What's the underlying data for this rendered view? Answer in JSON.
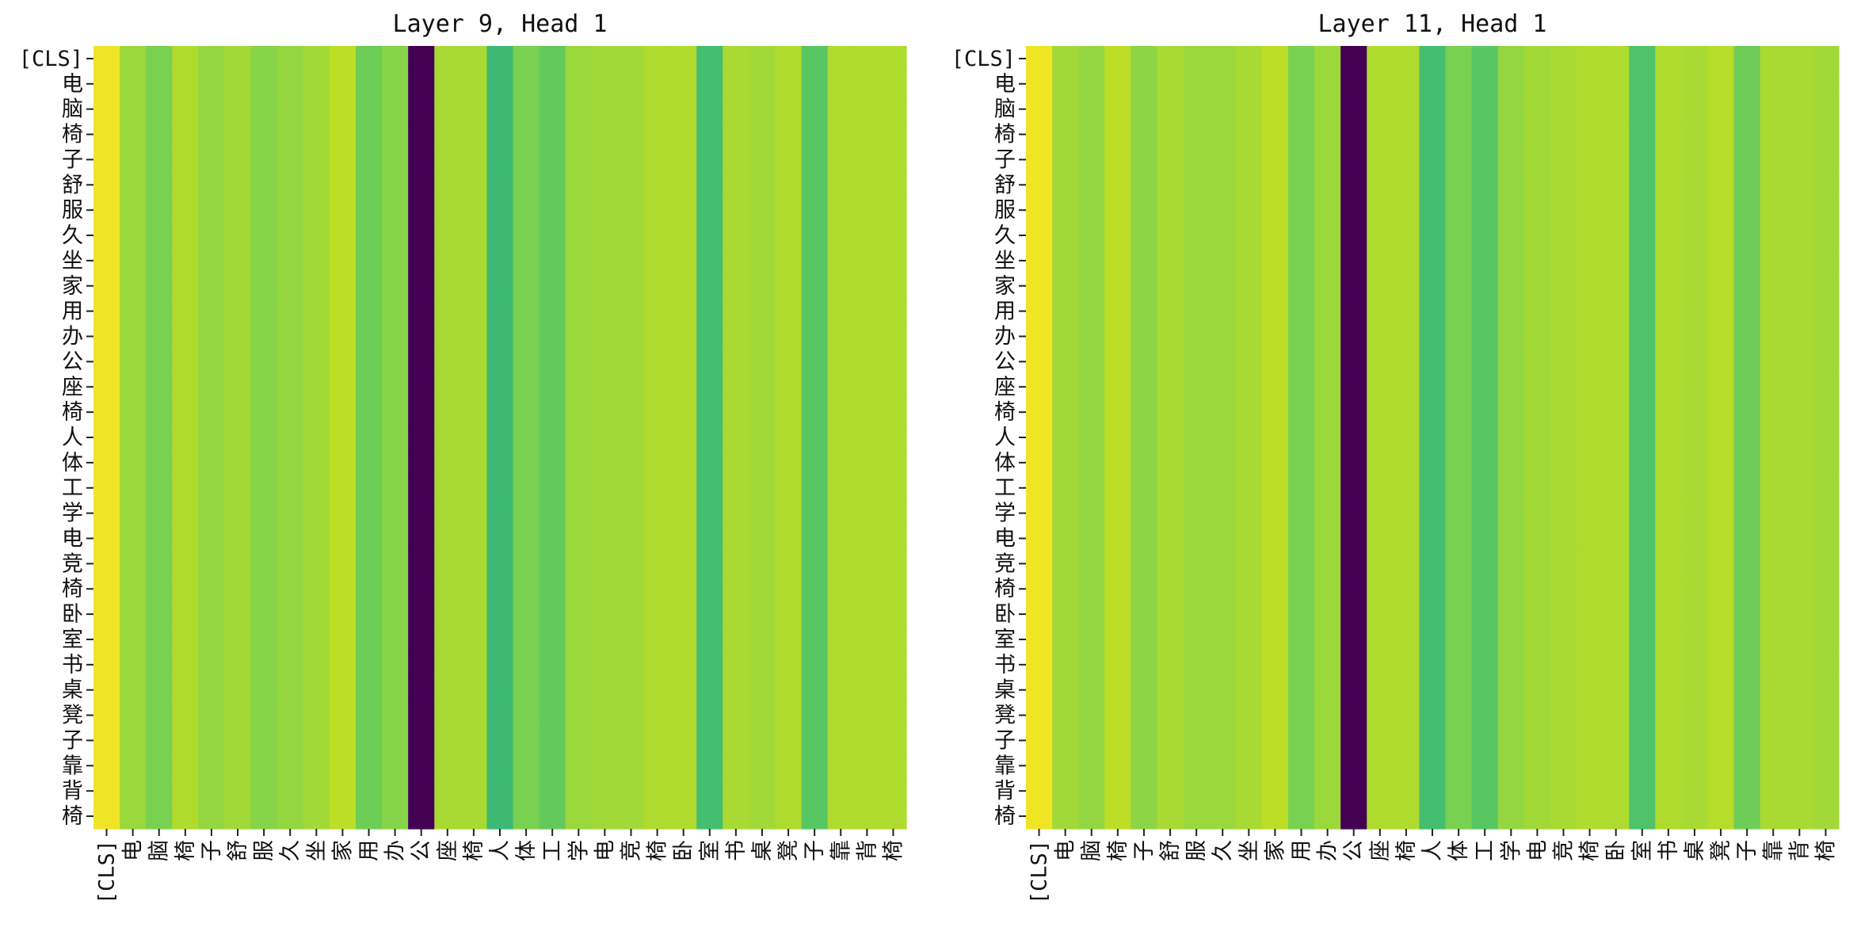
{
  "chart_data": [
    {
      "type": "heatmap",
      "title": "Layer 9, Head 1",
      "xlabel": "",
      "ylabel": "",
      "x_tick_labels": [
        "[CLS]",
        "电",
        "脑",
        "椅",
        "子",
        "舒",
        "服",
        "久",
        "坐",
        "家",
        "用",
        "办",
        "公",
        "座",
        "椅",
        "人",
        "体",
        "工",
        "学",
        "电",
        "竞",
        "椅",
        "卧",
        "室",
        "书",
        "桌",
        "凳",
        "子",
        "靠",
        "背",
        "椅"
      ],
      "y_tick_labels": [
        "[CLS]",
        "电",
        "脑",
        "椅",
        "子",
        "舒",
        "服",
        "久",
        "坐",
        "家",
        "用",
        "办",
        "公",
        "座",
        "椅",
        "人",
        "体",
        "工",
        "学",
        "电",
        "竞",
        "椅",
        "卧",
        "室",
        "书",
        "桌",
        "凳",
        "子",
        "靠",
        "背",
        "椅"
      ],
      "colormap": "viridis",
      "colorbar": false,
      "grid": false,
      "value_range": [
        0,
        1
      ],
      "column_values": [
        0.98,
        0.85,
        0.8,
        0.88,
        0.84,
        0.86,
        0.82,
        0.84,
        0.86,
        0.9,
        0.78,
        0.82,
        0.0,
        0.87,
        0.87,
        0.68,
        0.8,
        0.76,
        0.85,
        0.86,
        0.86,
        0.88,
        0.88,
        0.7,
        0.87,
        0.86,
        0.88,
        0.74,
        0.88,
        0.88,
        0.88
      ],
      "note": "each column has nearly constant values across all rows"
    },
    {
      "type": "heatmap",
      "title": "Layer 11, Head 1",
      "xlabel": "",
      "ylabel": "",
      "x_tick_labels": [
        "[CLS]",
        "电",
        "脑",
        "椅",
        "子",
        "舒",
        "服",
        "久",
        "坐",
        "家",
        "用",
        "办",
        "公",
        "座",
        "椅",
        "人",
        "体",
        "工",
        "学",
        "电",
        "竞",
        "椅",
        "卧",
        "室",
        "书",
        "桌",
        "凳",
        "子",
        "靠",
        "背",
        "椅"
      ],
      "y_tick_labels": [
        "[CLS]",
        "电",
        "脑",
        "椅",
        "子",
        "舒",
        "服",
        "久",
        "坐",
        "家",
        "用",
        "办",
        "公",
        "座",
        "椅",
        "人",
        "体",
        "工",
        "学",
        "电",
        "竞",
        "椅",
        "卧",
        "室",
        "书",
        "桌",
        "凳",
        "子",
        "靠",
        "背",
        "椅"
      ],
      "colormap": "viridis",
      "colorbar": false,
      "grid": false,
      "value_range": [
        0,
        1
      ],
      "column_values": [
        0.98,
        0.86,
        0.84,
        0.9,
        0.83,
        0.87,
        0.85,
        0.85,
        0.87,
        0.9,
        0.8,
        0.85,
        0.0,
        0.88,
        0.88,
        0.7,
        0.8,
        0.74,
        0.84,
        0.86,
        0.87,
        0.88,
        0.88,
        0.72,
        0.88,
        0.87,
        0.89,
        0.78,
        0.87,
        0.87,
        0.86
      ],
      "note": "each column has nearly constant values across all rows"
    }
  ]
}
